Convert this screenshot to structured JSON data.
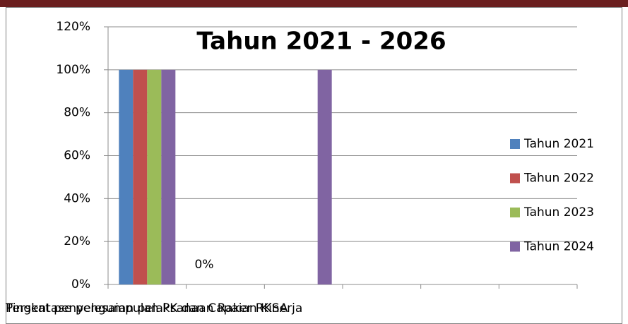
{
  "chart_data": {
    "type": "bar",
    "title": "Tahun 2021 - 2026",
    "categories": [
      "Tingkat penyelesaian pelaksanaan Raker RKSA",
      "Persentase pengumpulan PK dan Capaian Kinerja",
      null,
      null,
      null,
      null
    ],
    "series": [
      {
        "name": "Tahun 2021",
        "color": "#4f81bd",
        "values": [
          100,
          0,
          null,
          null,
          null,
          null
        ],
        "value_labels": [
          null,
          "0%",
          null,
          null,
          null,
          null
        ]
      },
      {
        "name": "Tahun 2022",
        "color": "#c0504d",
        "values": [
          100,
          null,
          null,
          null,
          null,
          null
        ]
      },
      {
        "name": "Tahun 2023",
        "color": "#9bbb59",
        "values": [
          100,
          null,
          null,
          null,
          null,
          null
        ]
      },
      {
        "name": "Tahun 2024",
        "color": "#8064a2",
        "values": [
          100,
          null,
          100,
          null,
          null,
          null
        ]
      }
    ],
    "ylim": [
      0,
      120
    ],
    "yticks": [
      {
        "value": 0,
        "label": "0%"
      },
      {
        "value": 20,
        "label": "20%"
      },
      {
        "value": 40,
        "label": "40%"
      },
      {
        "value": 60,
        "label": "60%"
      },
      {
        "value": 80,
        "label": "80%"
      },
      {
        "value": 100,
        "label": "100%"
      },
      {
        "value": 120,
        "label": "120%"
      }
    ],
    "grid": true,
    "legend": "right"
  }
}
